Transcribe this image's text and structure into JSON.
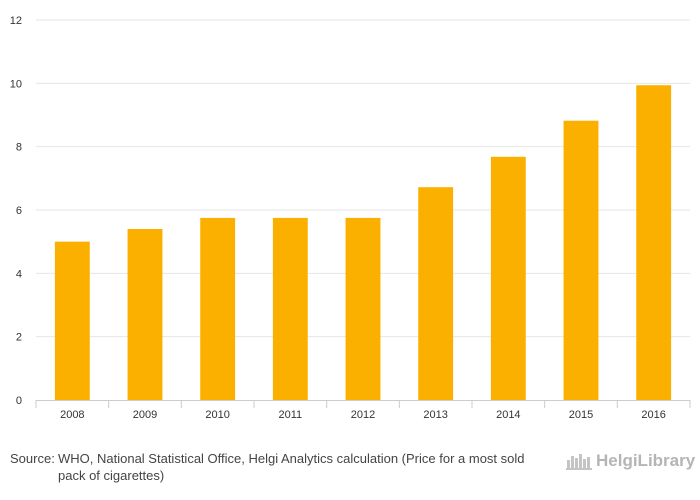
{
  "chart_data": {
    "type": "bar",
    "categories": [
      "2008",
      "2009",
      "2010",
      "2011",
      "2012",
      "2013",
      "2014",
      "2015",
      "2016"
    ],
    "values": [
      5.0,
      5.4,
      5.75,
      5.75,
      5.75,
      6.72,
      7.68,
      8.82,
      9.94
    ],
    "title": "",
    "xlabel": "",
    "ylabel": "",
    "ylim": [
      0,
      12
    ],
    "yticks": [
      0,
      2,
      4,
      6,
      8,
      10,
      12
    ],
    "grid": true,
    "bar_color": "#FBB000"
  },
  "footer": {
    "source_label": "Source:",
    "source_text": "WHO, National Statistical Office, Helgi Analytics calculation (Price for a most sold pack of cigarettes)"
  },
  "logo": {
    "text": "HelgiLibrary",
    "icon": "helgi-skyline-icon",
    "color": "#b5b5b5"
  }
}
